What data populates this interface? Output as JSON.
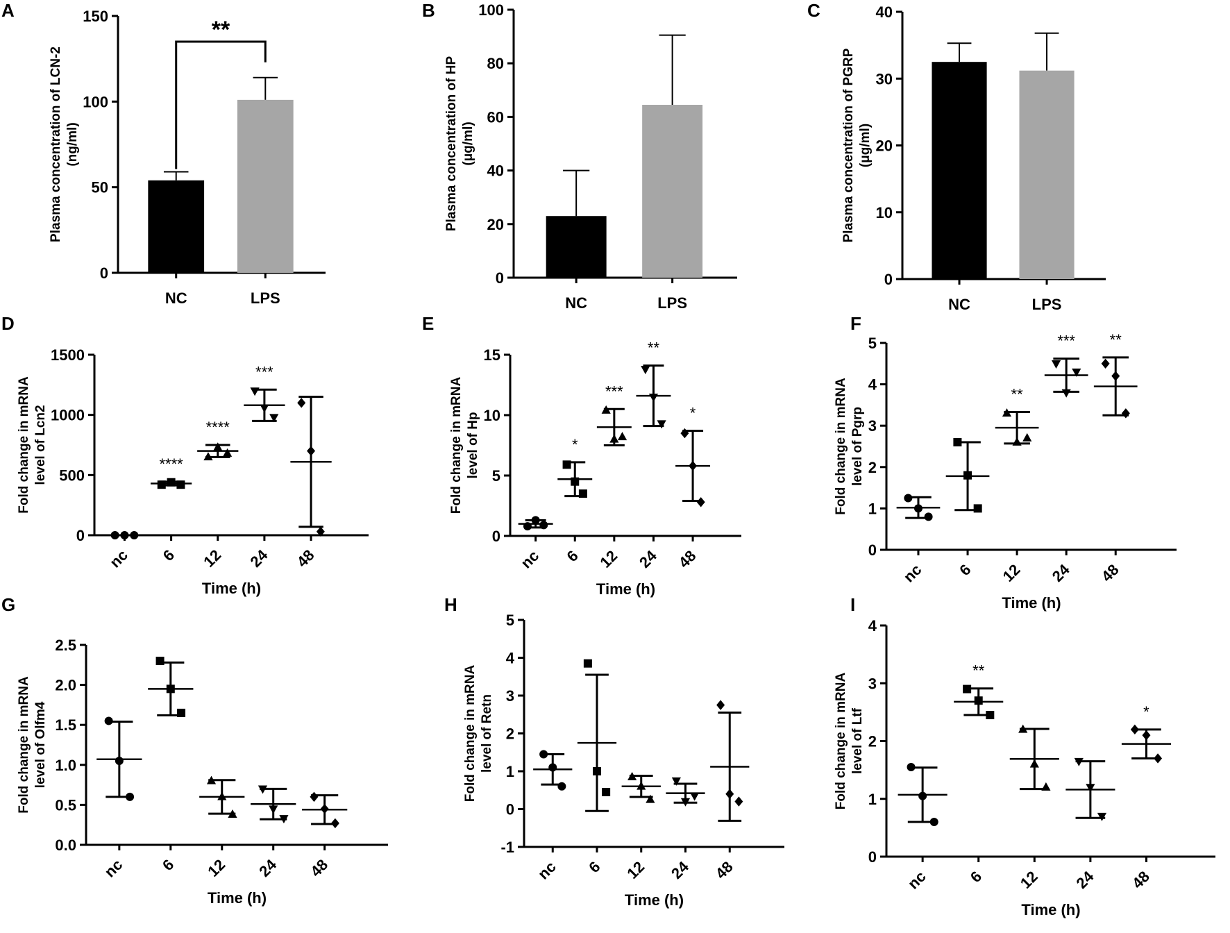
{
  "chart_data": [
    {
      "panel": "A",
      "type": "bar",
      "categories": [
        "NC",
        "LPS"
      ],
      "values": [
        54,
        101
      ],
      "errors": [
        5,
        13
      ],
      "colors": [
        "#000000",
        "#a6a6a6"
      ],
      "ylabel": [
        "Plasma concentration of LCN-2",
        "(ng/ml)"
      ],
      "ylim": [
        0,
        150
      ],
      "yticks": [
        0,
        50,
        100,
        150
      ],
      "ytick_labels": [
        "0",
        "50",
        "100",
        "150"
      ],
      "xlabel": "",
      "significance": {
        "between": [
          "NC",
          "LPS"
        ],
        "label": "**",
        "bracket_y": 135
      }
    },
    {
      "panel": "B",
      "type": "bar",
      "categories": [
        "NC",
        "LPS"
      ],
      "values": [
        23,
        64.5
      ],
      "errors": [
        17,
        26
      ],
      "colors": [
        "#000000",
        "#a6a6a6"
      ],
      "ylabel": [
        "Plasma concentration of HP",
        "(μg/ml)"
      ],
      "ylim": [
        0,
        100
      ],
      "yticks": [
        0,
        20,
        40,
        60,
        80,
        100
      ],
      "ytick_labels": [
        "0",
        "20",
        "40",
        "60",
        "80",
        "100"
      ],
      "xlabel": ""
    },
    {
      "panel": "C",
      "type": "bar",
      "categories": [
        "NC",
        "LPS"
      ],
      "values": [
        32.5,
        31.2
      ],
      "errors": [
        2.8,
        5.6
      ],
      "colors": [
        "#000000",
        "#a6a6a6"
      ],
      "ylabel": [
        "Plasma concentration of PGRP",
        "(μg/ml)"
      ],
      "ylim": [
        0,
        40
      ],
      "yticks": [
        0,
        10,
        20,
        30,
        40
      ],
      "ytick_labels": [
        "0",
        "10",
        "20",
        "30",
        "40"
      ],
      "xlabel": ""
    },
    {
      "panel": "D",
      "type": "scatter",
      "categories": [
        "nc",
        "6",
        "12",
        "24",
        "48"
      ],
      "points": [
        [
          0,
          0,
          0
        ],
        [
          420,
          440,
          420
        ],
        [
          650,
          730,
          680
        ],
        [
          1200,
          1060,
          980
        ],
        [
          1100,
          700,
          30
        ]
      ],
      "means": [
        0,
        430,
        700,
        1080,
        610
      ],
      "sd": [
        0,
        15,
        50,
        130,
        540
      ],
      "significance": [
        "",
        "****",
        "****",
        "***",
        ""
      ],
      "ylabel": [
        "Fold change in mRNA",
        "level of Lcn2"
      ],
      "xlabel": "Time (h)",
      "ylim": [
        0,
        1500
      ],
      "yticks": [
        0,
        500,
        1000,
        1500
      ],
      "ytick_labels": [
        "0",
        "500",
        "1000",
        "1500"
      ]
    },
    {
      "panel": "E",
      "type": "scatter",
      "categories": [
        "nc",
        "6",
        "12",
        "24",
        "48"
      ],
      "points": [
        [
          0.8,
          1.3,
          0.9
        ],
        [
          5.9,
          4.5,
          3.5
        ],
        [
          10.4,
          8.0,
          8.2
        ],
        [
          13.8,
          11.5,
          9.3
        ],
        [
          8.5,
          5.8,
          2.8
        ]
      ],
      "means": [
        1.0,
        4.7,
        9.0,
        11.6,
        5.8
      ],
      "sd": [
        0.3,
        1.4,
        1.5,
        2.5,
        2.9
      ],
      "significance": [
        "",
        "*",
        "***",
        "**",
        "*"
      ],
      "ylabel": [
        "Fold change in mRNA",
        "level of Hp"
      ],
      "xlabel": "Time (h)",
      "ylim": [
        0,
        15
      ],
      "yticks": [
        0,
        5,
        10,
        15
      ],
      "ytick_labels": [
        "0",
        "5",
        "10",
        "15"
      ]
    },
    {
      "panel": "F",
      "type": "scatter",
      "categories": [
        "nc",
        "6",
        "12",
        "24",
        "48"
      ],
      "points": [
        [
          1.25,
          1.0,
          0.8
        ],
        [
          2.6,
          1.8,
          1.0
        ],
        [
          3.3,
          2.6,
          2.7
        ],
        [
          4.5,
          3.8,
          4.3
        ],
        [
          4.5,
          4.2,
          3.3
        ]
      ],
      "means": [
        1.02,
        1.78,
        2.95,
        4.22,
        3.95
      ],
      "sd": [
        0.25,
        0.82,
        0.38,
        0.4,
        0.7
      ],
      "significance": [
        "",
        "",
        "**",
        "***",
        "**"
      ],
      "ylabel": [
        "Fold change in mRNA",
        "level of Pgrp"
      ],
      "xlabel": "Time (h)",
      "ylim": [
        0,
        5
      ],
      "yticks": [
        0,
        1,
        2,
        3,
        4,
        5
      ],
      "ytick_labels": [
        "0",
        "1",
        "2",
        "3",
        "4",
        "5"
      ]
    },
    {
      "panel": "G",
      "type": "scatter",
      "categories": [
        "nc",
        "6",
        "12",
        "24",
        "48"
      ],
      "points": [
        [
          1.55,
          1.05,
          0.6
        ],
        [
          2.3,
          1.95,
          1.65
        ],
        [
          0.8,
          0.6,
          0.38
        ],
        [
          0.7,
          0.45,
          0.33
        ],
        [
          0.6,
          0.45,
          0.27
        ]
      ],
      "means": [
        1.07,
        1.95,
        0.6,
        0.51,
        0.44
      ],
      "sd": [
        0.47,
        0.33,
        0.21,
        0.19,
        0.18
      ],
      "significance": [
        "",
        "",
        "",
        "",
        ""
      ],
      "ylabel": [
        "Fold change in mRNA",
        "level of Olfm4"
      ],
      "xlabel": "Time (h)",
      "ylim": [
        0,
        2.5
      ],
      "yticks": [
        0,
        0.5,
        1,
        1.5,
        2,
        2.5
      ],
      "ytick_labels": [
        "0.0",
        "0.5",
        "1.0",
        "1.5",
        "2.0",
        "2.5"
      ]
    },
    {
      "panel": "H",
      "type": "scatter",
      "categories": [
        "nc",
        "6",
        "12",
        "24",
        "48"
      ],
      "points": [
        [
          1.45,
          1.1,
          0.6
        ],
        [
          3.85,
          1.0,
          0.45
        ],
        [
          0.85,
          0.6,
          0.25
        ],
        [
          0.75,
          0.2,
          0.35
        ],
        [
          2.75,
          0.4,
          0.2
        ]
      ],
      "means": [
        1.05,
        1.75,
        0.6,
        0.42,
        1.12
      ],
      "sd": [
        0.4,
        1.8,
        0.28,
        0.25,
        1.43
      ],
      "significance": [
        "",
        "",
        "",
        "",
        ""
      ],
      "ylabel": [
        "Fold change in mRNA",
        "level of Retn"
      ],
      "xlabel": "Time (h)",
      "ylim": [
        -1,
        5
      ],
      "yticks": [
        -1,
        0,
        1,
        2,
        3,
        4,
        5
      ],
      "ytick_labels": [
        "-1",
        "0",
        "1",
        "2",
        "3",
        "4",
        "5"
      ]
    },
    {
      "panel": "I",
      "type": "scatter",
      "categories": [
        "nc",
        "6",
        "12",
        "24",
        "48"
      ],
      "points": [
        [
          1.55,
          1.05,
          0.6
        ],
        [
          2.9,
          2.7,
          2.45
        ],
        [
          2.2,
          1.6,
          1.2
        ],
        [
          1.65,
          1.2,
          0.7
        ],
        [
          2.2,
          2.1,
          1.7
        ]
      ],
      "means": [
        1.07,
        2.68,
        1.69,
        1.16,
        1.95
      ],
      "sd": [
        0.47,
        0.23,
        0.52,
        0.49,
        0.25
      ],
      "significance": [
        "",
        "**",
        "",
        "",
        "*"
      ],
      "ylabel": [
        "Fold change in mRNA",
        "level of Ltf"
      ],
      "xlabel": "Time (h)",
      "ylim": [
        0,
        4
      ],
      "yticks": [
        0,
        1,
        2,
        3,
        4
      ],
      "ytick_labels": [
        "0",
        "1",
        "2",
        "3",
        "4"
      ]
    }
  ]
}
